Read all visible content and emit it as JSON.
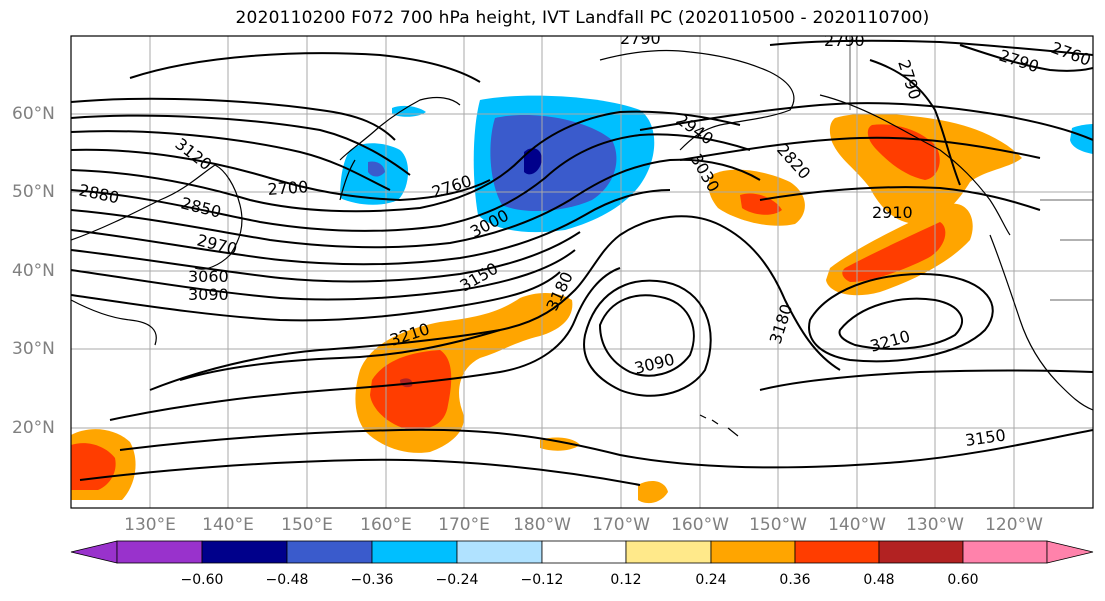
{
  "title": "2020110200 F072 700 hPa height, IVT Landfall PC (2020110500 - 2020110700)",
  "lat_labels": [
    "60°N",
    "50°N",
    "40°N",
    "30°N",
    "20°N"
  ],
  "lon_labels": [
    "130°E",
    "140°E",
    "150°E",
    "160°E",
    "170°E",
    "180°W",
    "170°W",
    "160°W",
    "150°W",
    "140°W",
    "130°W",
    "120°W"
  ],
  "colorbar": {
    "ticks": [
      "−0.60",
      "−0.48",
      "−0.36",
      "−0.24",
      "−0.12",
      "0.12",
      "0.24",
      "0.36",
      "0.48",
      "0.60"
    ],
    "colors": [
      "#9932cc",
      "#00008b",
      "#3a5bcc",
      "#00bfff",
      "#b0e2ff",
      "#ffffff",
      "#ffe98a",
      "#ffa500",
      "#ff3d00",
      "#b22222",
      "#ff82ab"
    ]
  },
  "contour_labels": [
    "2790",
    "2790",
    "2790",
    "2760",
    "2790",
    "2700",
    "2760",
    "2880",
    "2850",
    "2940",
    "2970",
    "3000",
    "3030",
    "2820",
    "2910",
    "3060",
    "3090",
    "3150",
    "3180",
    "3180",
    "3210",
    "3090",
    "3210",
    "3150",
    "3120"
  ]
}
